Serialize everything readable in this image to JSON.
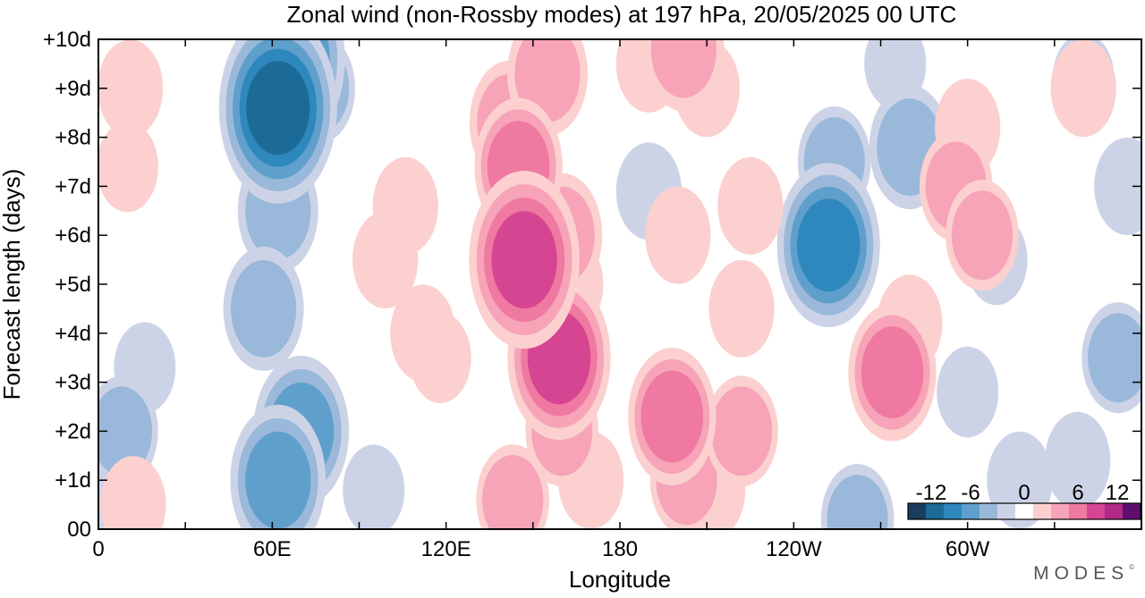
{
  "chart_data": {
    "type": "heatmap",
    "title": "Zonal wind (non-Rossby modes) at 197 hPa,  20/05/2025  00 UTC",
    "xlabel": "Longitude",
    "ylabel": "Forecast length (days)",
    "x_ticks": [
      {
        "lon": 0,
        "label": "0"
      },
      {
        "lon": 60,
        "label": "60E"
      },
      {
        "lon": 120,
        "label": "120E"
      },
      {
        "lon": 180,
        "label": "180"
      },
      {
        "lon": 240,
        "label": "120W"
      },
      {
        "lon": 300,
        "label": "60W"
      }
    ],
    "xlim": [
      0,
      360
    ],
    "ylim": [
      0,
      10
    ],
    "y_ticks": [
      {
        "day": 0,
        "label": "00"
      },
      {
        "day": 1,
        "label": "+1d"
      },
      {
        "day": 2,
        "label": "+2d"
      },
      {
        "day": 3,
        "label": "+3d"
      },
      {
        "day": 4,
        "label": "+4d"
      },
      {
        "day": 5,
        "label": "+5d"
      },
      {
        "day": 6,
        "label": "+6d"
      },
      {
        "day": 7,
        "label": "+7d"
      },
      {
        "day": 8,
        "label": "+8d"
      },
      {
        "day": 9,
        "label": "+9d"
      },
      {
        "day": 10,
        "label": "+10d"
      }
    ],
    "colorbar": {
      "tick_labels": [
        "-12",
        "-6",
        "0",
        "6",
        "12"
      ],
      "levels": [
        -14,
        -12,
        -10,
        -8,
        -6,
        -4,
        -2,
        2,
        4,
        6,
        8,
        10,
        12,
        14
      ],
      "colors": [
        "#1a3d5e",
        "#1c6a98",
        "#2f88bd",
        "#5f9fcb",
        "#9ab9da",
        "#cdd3e7",
        "#ffffff",
        "#fbd0cf",
        "#f7a3b8",
        "#ef79a0",
        "#d64592",
        "#b02a86",
        "#5e0f6e"
      ]
    },
    "features": [
      {
        "lon": 62,
        "day": 8.6,
        "value": -10
      },
      {
        "lon": 66,
        "day": 9.6,
        "value": -9
      },
      {
        "lon": 62,
        "day": 6.5,
        "value": -5
      },
      {
        "lon": 57,
        "day": 4.5,
        "value": -5
      },
      {
        "lon": 70,
        "day": 2.0,
        "value": -7
      },
      {
        "lon": 62,
        "day": 1.0,
        "value": -7
      },
      {
        "lon": 76,
        "day": 9.0,
        "value": -4
      },
      {
        "lon": 8,
        "day": 2.0,
        "value": -4
      },
      {
        "lon": 16,
        "day": 3.3,
        "value": -2.5
      },
      {
        "lon": 3,
        "day": 0.4,
        "value": -2.5
      },
      {
        "lon": 95,
        "day": 0.8,
        "value": -2.5
      },
      {
        "lon": 252,
        "day": 5.8,
        "value": -8
      },
      {
        "lon": 254,
        "day": 7.5,
        "value": -4
      },
      {
        "lon": 280,
        "day": 7.8,
        "value": -5
      },
      {
        "lon": 262,
        "day": 0.2,
        "value": -4
      },
      {
        "lon": 352,
        "day": 3.5,
        "value": -4
      },
      {
        "lon": 338,
        "day": 1.4,
        "value": -3
      },
      {
        "lon": 318,
        "day": 1.0,
        "value": -3
      },
      {
        "lon": 300,
        "day": 2.8,
        "value": -2.5
      },
      {
        "lon": 310,
        "day": 5.5,
        "value": -2.5
      },
      {
        "lon": 355,
        "day": 7.0,
        "value": -3
      },
      {
        "lon": 190,
        "day": 6.9,
        "value": -3
      },
      {
        "lon": 275,
        "day": 9.5,
        "value": -2.5
      },
      {
        "lon": 340,
        "day": 9.2,
        "value": -2.5
      },
      {
        "lon": 147,
        "day": 5.5,
        "value": 9
      },
      {
        "lon": 159,
        "day": 3.5,
        "value": 8
      },
      {
        "lon": 145,
        "day": 7.4,
        "value": 6
      },
      {
        "lon": 142,
        "day": 8.3,
        "value": 5
      },
      {
        "lon": 155,
        "day": 9.3,
        "value": 5
      },
      {
        "lon": 160,
        "day": 6.0,
        "value": 5
      },
      {
        "lon": 160,
        "day": 2.0,
        "value": 4
      },
      {
        "lon": 143,
        "day": 0.6,
        "value": 4
      },
      {
        "lon": 170,
        "day": 1.0,
        "value": 3
      },
      {
        "lon": 163,
        "day": 5.0,
        "value": 3
      },
      {
        "lon": 198,
        "day": 2.3,
        "value": 6
      },
      {
        "lon": 203,
        "day": 1.0,
        "value": 4
      },
      {
        "lon": 212,
        "day": 0.8,
        "value": 3
      },
      {
        "lon": 222,
        "day": 2.0,
        "value": 4
      },
      {
        "lon": 190,
        "day": 9.5,
        "value": 3
      },
      {
        "lon": 202,
        "day": 9.8,
        "value": 5
      },
      {
        "lon": 210,
        "day": 9.0,
        "value": 3
      },
      {
        "lon": 200,
        "day": 6.0,
        "value": 3
      },
      {
        "lon": 225,
        "day": 6.6,
        "value": 3
      },
      {
        "lon": 222,
        "day": 4.5,
        "value": 3
      },
      {
        "lon": 99,
        "day": 5.5,
        "value": 3
      },
      {
        "lon": 106,
        "day": 6.6,
        "value": 3
      },
      {
        "lon": 112,
        "day": 4.0,
        "value": 3
      },
      {
        "lon": 118,
        "day": 3.5,
        "value": 2.5
      },
      {
        "lon": 274,
        "day": 3.2,
        "value": 6
      },
      {
        "lon": 280,
        "day": 4.2,
        "value": 3
      },
      {
        "lon": 296,
        "day": 7.0,
        "value": 4
      },
      {
        "lon": 305,
        "day": 6.0,
        "value": 4
      },
      {
        "lon": 300,
        "day": 8.2,
        "value": 3
      },
      {
        "lon": 11,
        "day": 9.0,
        "value": 3
      },
      {
        "lon": 10,
        "day": 7.4,
        "value": 2.5
      },
      {
        "lon": 12,
        "day": 0.5,
        "value": 3
      },
      {
        "lon": 340,
        "day": 9.0,
        "value": 3
      }
    ]
  }
}
